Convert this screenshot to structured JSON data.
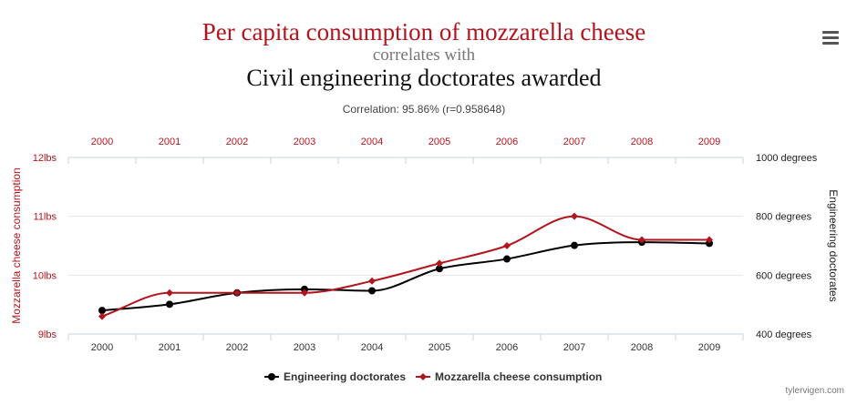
{
  "header": {
    "title_primary": "Per capita consumption of mozzarella cheese",
    "title_connector": "correlates with",
    "title_secondary": "Civil engineering doctorates awarded",
    "subtitle": "Correlation: 95.86% (r=0.958648)"
  },
  "menu_icon": "hamburger-menu-icon",
  "credit": "tylervigen.com",
  "colors": {
    "red": "#b2151e",
    "black": "#000000",
    "grid": "#e6e6e6",
    "axis": "#c8d3e0"
  },
  "chart_data": {
    "type": "line",
    "categories": [
      "2000",
      "2001",
      "2002",
      "2003",
      "2004",
      "2005",
      "2006",
      "2007",
      "2008",
      "2009"
    ],
    "series": [
      {
        "name": "Engineering doctorates",
        "axis": "right",
        "color": "#000000",
        "marker": "circle",
        "values": [
          480,
          501,
          540,
          552,
          547,
          622,
          655,
          701,
          712,
          708
        ]
      },
      {
        "name": "Mozzarella cheese consumption",
        "axis": "left",
        "color": "#b2151e",
        "marker": "diamond",
        "values": [
          9.3,
          9.7,
          9.7,
          9.7,
          9.9,
          10.2,
          10.5,
          11.0,
          10.6,
          10.6
        ]
      }
    ],
    "y_left": {
      "label": "Mozzarella cheese consumption",
      "range": [
        9,
        12
      ],
      "ticks": [
        {
          "value": 9,
          "label": "9lbs"
        },
        {
          "value": 10,
          "label": "10lbs"
        },
        {
          "value": 11,
          "label": "11lbs"
        },
        {
          "value": 12,
          "label": "12lbs"
        }
      ]
    },
    "y_right": {
      "label": "Engineering doctorates",
      "range": [
        400,
        1000
      ],
      "ticks": [
        {
          "value": 400,
          "label": "400 degrees"
        },
        {
          "value": 600,
          "label": "600 degrees"
        },
        {
          "value": 800,
          "label": "800 degrees"
        },
        {
          "value": 1000,
          "label": "1000 degrees"
        }
      ]
    },
    "grid": true,
    "legend": {
      "placement": "bottom-center",
      "items": [
        {
          "label": "Engineering doctorates",
          "color": "#000000",
          "marker": "circle"
        },
        {
          "label": "Mozzarella cheese consumption",
          "color": "#b2151e",
          "marker": "diamond"
        }
      ]
    }
  }
}
